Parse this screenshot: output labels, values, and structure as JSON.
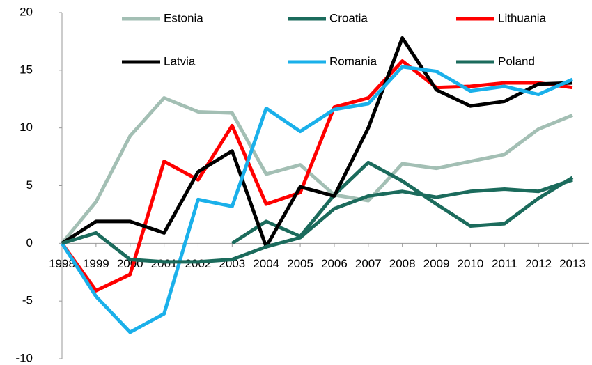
{
  "chart_data": {
    "type": "line",
    "categories": [
      "1998",
      "1999",
      "2000",
      "2001",
      "2002",
      "2003",
      "2004",
      "2005",
      "2006",
      "2007",
      "2008",
      "2009",
      "2010",
      "2011",
      "2012",
      "2013"
    ],
    "series": [
      {
        "name": "Estonia",
        "color": "#a3bfb4",
        "values": [
          0,
          3.6,
          9.3,
          12.6,
          11.4,
          11.3,
          6.0,
          6.8,
          4.2,
          3.7,
          6.9,
          6.5,
          7.1,
          7.7,
          9.9,
          11.1
        ]
      },
      {
        "name": "Croatia",
        "color": "#1b6b5c",
        "values": [
          null,
          null,
          null,
          null,
          null,
          0,
          1.9,
          0.6,
          4.2,
          7.0,
          5.4,
          3.4,
          1.5,
          1.7,
          3.9,
          5.7
        ]
      },
      {
        "name": "Lithuania",
        "color": "#ff0000",
        "values": [
          0,
          -4.1,
          -2.7,
          7.1,
          5.5,
          10.2,
          3.4,
          4.4,
          11.8,
          12.6,
          15.8,
          13.5,
          13.6,
          13.9,
          13.9,
          13.5
        ]
      },
      {
        "name": "Latvia",
        "color": "#000000",
        "values": [
          0,
          1.9,
          1.9,
          0.9,
          6.2,
          8.0,
          -0.3,
          4.9,
          4.1,
          10.0,
          17.8,
          13.3,
          11.9,
          12.3,
          13.8,
          13.9
        ]
      },
      {
        "name": "Romania",
        "color": "#1ab0ea",
        "values": [
          0,
          -4.6,
          -7.7,
          -6.1,
          3.8,
          3.2,
          11.7,
          9.7,
          11.6,
          12.1,
          15.3,
          14.9,
          13.2,
          13.6,
          12.9,
          14.2
        ]
      },
      {
        "name": "Poland",
        "color": "#1b6b5c",
        "values": [
          0,
          0.9,
          -1.4,
          -1.6,
          -1.6,
          -1.4,
          -0.3,
          0.5,
          3.0,
          4.1,
          4.5,
          4.0,
          4.5,
          4.7,
          4.5,
          5.5
        ]
      }
    ],
    "ylim": [
      -10,
      20
    ],
    "yticks": [
      -10,
      -5,
      0,
      5,
      10,
      15,
      20
    ],
    "grid": false,
    "legend": "top"
  }
}
